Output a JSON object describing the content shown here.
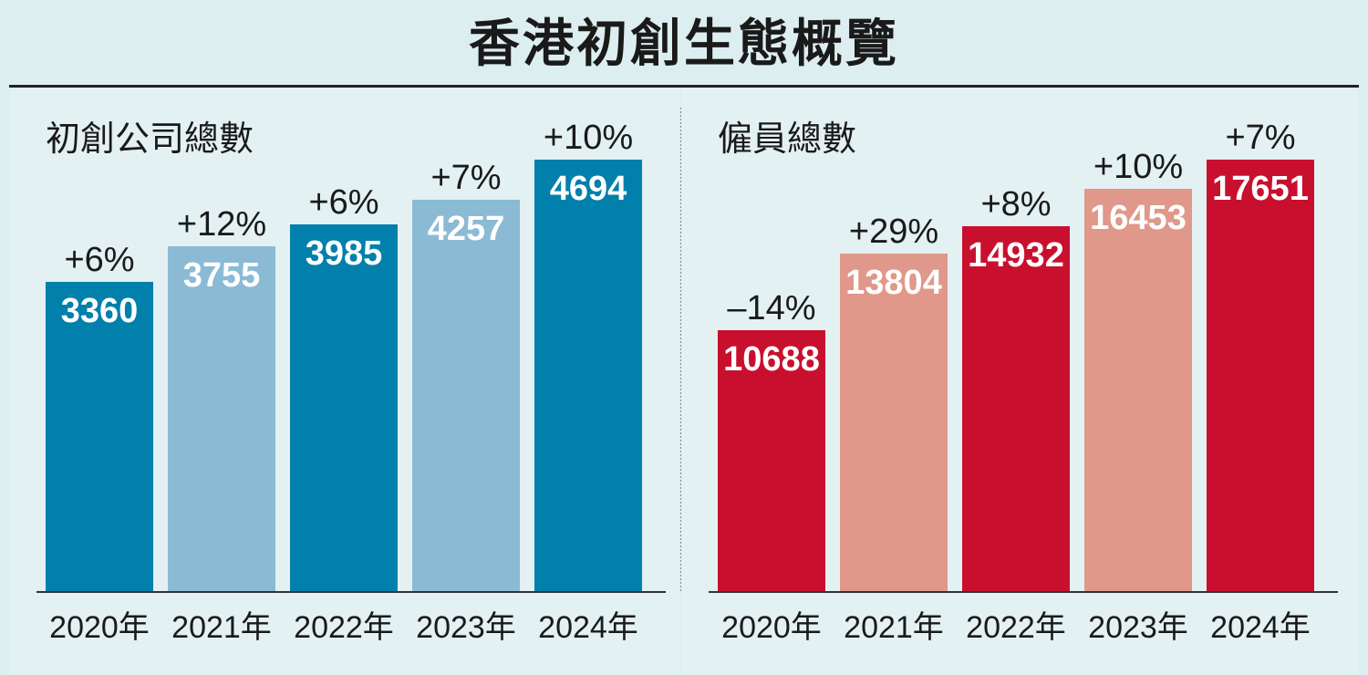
{
  "title": "香港初創生態概覽",
  "chart_data": [
    {
      "type": "bar",
      "title": "初創公司總數",
      "categories": [
        "2020年",
        "2021年",
        "2022年",
        "2023年",
        "2024年"
      ],
      "values": [
        3360,
        3755,
        3985,
        4257,
        4694
      ],
      "changes": [
        "+6%",
        "+12%",
        "+6%",
        "+7%",
        "+10%"
      ],
      "bar_colors": [
        "#0080aa",
        "#8bbad4",
        "#0080aa",
        "#8bbad4",
        "#0080aa"
      ],
      "ylim": [
        0,
        4694
      ]
    },
    {
      "type": "bar",
      "title": "僱員總數",
      "categories": [
        "2020年",
        "2021年",
        "2022年",
        "2023年",
        "2024年"
      ],
      "values": [
        10688,
        13804,
        14932,
        16453,
        17651
      ],
      "changes": [
        "–14%",
        "+29%",
        "+8%",
        "+10%",
        "+7%"
      ],
      "bar_colors": [
        "#c8102e",
        "#e0988a",
        "#c8102e",
        "#e0988a",
        "#c8102e"
      ],
      "ylim": [
        0,
        17651
      ]
    }
  ]
}
